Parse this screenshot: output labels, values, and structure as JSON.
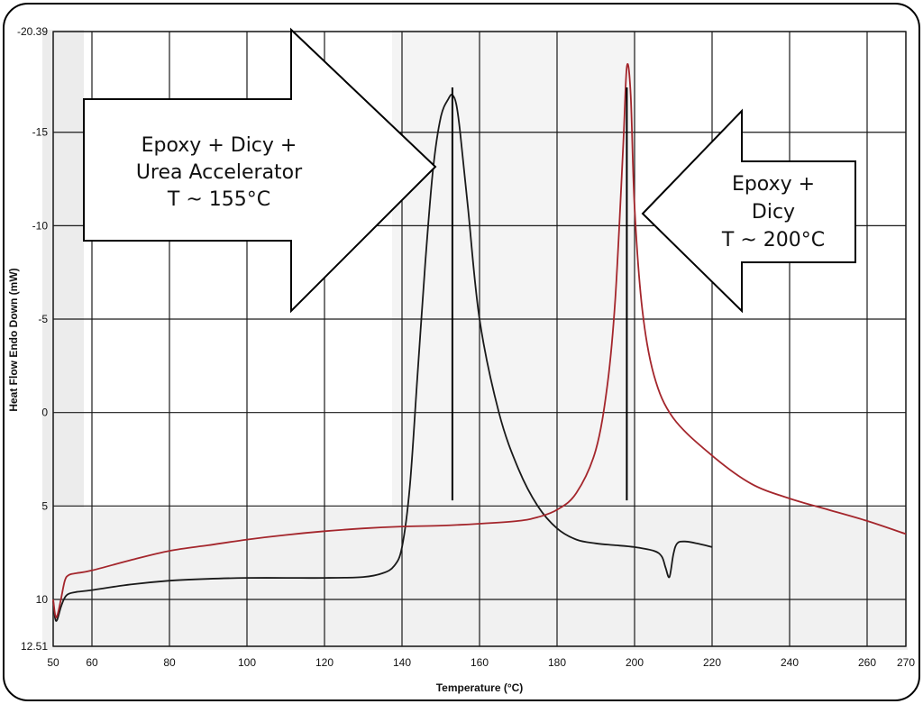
{
  "chart_data": {
    "type": "line",
    "xlabel": "Temperature (°C)",
    "ylabel": "Heat Flow Endo Down (mW)",
    "xlim": [
      50,
      270
    ],
    "ylim": [
      12.51,
      -20.39
    ],
    "y_axis_inverted": true,
    "grid": true,
    "x_ticks": [
      "50",
      "60",
      "80",
      "100",
      "120",
      "140",
      "160",
      "180",
      "200",
      "220",
      "240",
      "260",
      "270"
    ],
    "y_ticks": [
      "-20.39",
      "-15",
      "-10",
      "-5",
      "0",
      "5",
      "10",
      "12.51"
    ],
    "series": [
      {
        "color": "#1a1a1a",
        "x": [
          50,
          50.5,
          51,
          52,
          53,
          54,
          56,
          60,
          70,
          80,
          90,
          100,
          110,
          120,
          130,
          135,
          138,
          140,
          142,
          144,
          146,
          148,
          150,
          152,
          153,
          154,
          155,
          157,
          160,
          165,
          170,
          175,
          180,
          185,
          190,
          195,
          200,
          205,
          207,
          208,
          209,
          210,
          211,
          213,
          216,
          220
        ],
        "y": [
          10.1,
          11.0,
          11.1,
          10.4,
          9.9,
          9.7,
          9.6,
          9.5,
          9.2,
          9.0,
          8.9,
          8.85,
          8.85,
          8.85,
          8.8,
          8.6,
          8.2,
          7.2,
          4.0,
          -2.0,
          -8.0,
          -13.0,
          -15.8,
          -16.8,
          -17.0,
          -16.5,
          -15.0,
          -11.0,
          -5.0,
          0.0,
          3.0,
          5.0,
          6.2,
          6.8,
          7.0,
          7.1,
          7.2,
          7.4,
          7.7,
          8.3,
          8.8,
          7.6,
          7.0,
          6.9,
          7.0,
          7.2
        ]
      },
      {
        "color": "#a4262c",
        "x": [
          50,
          50.5,
          51,
          52,
          53,
          54,
          56,
          60,
          70,
          80,
          90,
          100,
          110,
          120,
          130,
          140,
          150,
          160,
          170,
          175,
          180,
          185,
          190,
          193,
          195,
          197,
          198,
          199,
          200,
          202,
          205,
          210,
          220,
          230,
          240,
          250,
          260,
          270
        ],
        "y": [
          10.0,
          10.8,
          10.9,
          10.0,
          9.0,
          8.7,
          8.6,
          8.45,
          7.9,
          7.4,
          7.1,
          6.8,
          6.55,
          6.35,
          6.2,
          6.1,
          6.05,
          5.95,
          5.8,
          5.6,
          5.2,
          4.3,
          2.0,
          -1.5,
          -6.0,
          -14.0,
          -18.5,
          -17.0,
          -11.0,
          -5.5,
          -2.0,
          0.3,
          2.3,
          3.8,
          4.6,
          5.2,
          5.8,
          6.5
        ]
      }
    ],
    "annotations": [
      {
        "lines": [
          "Epoxy + Dicy +",
          "Urea Accelerator",
          "T ~ 155°C"
        ],
        "direction": "right",
        "points_to_x": 153
      },
      {
        "lines": [
          "Epoxy +",
          "Dicy",
          "T ~ 200°C"
        ],
        "direction": "left",
        "points_to_x": 198
      }
    ],
    "markers": [
      {
        "x": 153,
        "y_from": -17.4,
        "y_to": 4.7
      },
      {
        "x": 198,
        "y_from": -17.4,
        "y_to": 4.7
      }
    ]
  }
}
